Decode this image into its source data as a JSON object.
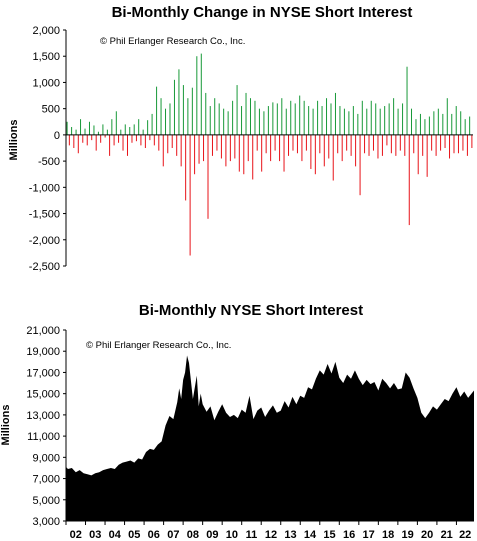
{
  "chart_data": [
    {
      "type": "bar",
      "title": "Bi-Monthly Change in NYSE Short Interest",
      "annotation": "© Phil Erlanger Research Co., Inc.",
      "ylabel": "Millions",
      "ylim": [
        -2500,
        2000
      ],
      "yticks": [
        "2,000",
        "1,500",
        "1,000",
        "500",
        "0",
        "-500",
        "-1,000",
        "-1,500",
        "-2,000",
        "-2,500"
      ],
      "ytick_values": [
        2000,
        1500,
        1000,
        500,
        0,
        -500,
        -1000,
        -1500,
        -2000,
        -2500
      ],
      "grid": false,
      "colors": {
        "positive": "#1a9a3a",
        "negative": "#e8151b"
      },
      "values": [
        250,
        -200,
        150,
        -250,
        100,
        -350,
        300,
        -150,
        120,
        -200,
        250,
        -100,
        180,
        -300,
        60,
        -150,
        200,
        -50,
        100,
        -400,
        300,
        -200,
        450,
        -150,
        100,
        -300,
        200,
        -400,
        150,
        -150,
        200,
        -120,
        300,
        -200,
        100,
        -250,
        280,
        -100,
        400,
        -200,
        920,
        -300,
        700,
        -600,
        500,
        -350,
        600,
        -250,
        1050,
        -400,
        1250,
        -600,
        950,
        -1250,
        700,
        -2300,
        900,
        -750,
        1500,
        -550,
        1550,
        -500,
        800,
        -1600,
        550,
        -400,
        700,
        -300,
        600,
        -450,
        500,
        -600,
        450,
        -500,
        650,
        -450,
        950,
        -700,
        550,
        -750,
        800,
        -500,
        700,
        -850,
        650,
        -300,
        500,
        -700,
        450,
        -350,
        550,
        -500,
        620,
        -300,
        600,
        -500,
        700,
        -700,
        500,
        -400,
        650,
        -300,
        600,
        -350,
        750,
        -500,
        650,
        -300,
        550,
        -650,
        500,
        -750,
        650,
        -350,
        550,
        -600,
        700,
        -450,
        600,
        -870,
        800,
        -350,
        550,
        -500,
        500,
        -300,
        450,
        -400,
        550,
        -600,
        400,
        -1150,
        650,
        -350,
        500,
        -400,
        650,
        -300,
        600,
        -450,
        500,
        -400,
        550,
        -200,
        600,
        -350,
        700,
        -400,
        500,
        -300,
        600,
        -400,
        1300,
        -1720,
        500,
        -350,
        300,
        -750,
        400,
        -400,
        300,
        -800,
        350,
        -300,
        450,
        -400,
        500,
        -300,
        400,
        -250,
        700,
        -450,
        400,
        -350,
        550,
        -350,
        450,
        -300,
        300,
        -400,
        350,
        -250
      ]
    },
    {
      "type": "area",
      "title": "Bi-Monthly NYSE Short Interest",
      "annotation": "© Phil Erlanger Research Co., Inc.",
      "ylabel": "Millions",
      "ylim": [
        3000,
        21000
      ],
      "yticks": [
        "21,000",
        "19,000",
        "17,000",
        "15,000",
        "13,000",
        "11,000",
        "9,000",
        "7,000",
        "5,000",
        "3,000"
      ],
      "ytick_values": [
        21000,
        19000,
        17000,
        15000,
        13000,
        11000,
        9000,
        7000,
        5000,
        3000
      ],
      "x_tick_labels": [
        "02",
        "03",
        "04",
        "05",
        "06",
        "07",
        "08",
        "09",
        "10",
        "11",
        "12",
        "13",
        "14",
        "15",
        "16",
        "17",
        "18",
        "19",
        "20",
        "21",
        "22"
      ],
      "xlim": [
        2002,
        2022.9
      ],
      "grid": false,
      "color": "#000000",
      "x": [
        2002.0,
        2002.1,
        2002.3,
        2002.5,
        2002.7,
        2002.9,
        2003.1,
        2003.3,
        2003.5,
        2003.7,
        2003.9,
        2004.1,
        2004.3,
        2004.5,
        2004.7,
        2004.9,
        2005.1,
        2005.3,
        2005.5,
        2005.7,
        2005.9,
        2006.1,
        2006.3,
        2006.5,
        2006.7,
        2006.9,
        2007.1,
        2007.3,
        2007.5,
        2007.7,
        2007.8,
        2007.9,
        2008.0,
        2008.1,
        2008.2,
        2008.3,
        2008.5,
        2008.7,
        2008.8,
        2008.9,
        2009.0,
        2009.2,
        2009.4,
        2009.6,
        2009.8,
        2010.0,
        2010.2,
        2010.4,
        2010.6,
        2010.8,
        2011.0,
        2011.2,
        2011.4,
        2011.6,
        2011.8,
        2012.0,
        2012.2,
        2012.4,
        2012.6,
        2012.8,
        2013.0,
        2013.2,
        2013.4,
        2013.6,
        2013.8,
        2014.0,
        2014.2,
        2014.4,
        2014.6,
        2014.8,
        2015.0,
        2015.2,
        2015.4,
        2015.6,
        2015.8,
        2016.0,
        2016.2,
        2016.4,
        2016.6,
        2016.8,
        2017.0,
        2017.2,
        2017.4,
        2017.6,
        2017.8,
        2018.0,
        2018.2,
        2018.4,
        2018.6,
        2018.8,
        2019.0,
        2019.2,
        2019.4,
        2019.6,
        2019.8,
        2020.0,
        2020.2,
        2020.4,
        2020.6,
        2020.8,
        2021.0,
        2021.2,
        2021.4,
        2021.6,
        2021.8,
        2022.0,
        2022.2,
        2022.4,
        2022.6,
        2022.9
      ],
      "values": [
        8100,
        7900,
        8000,
        7600,
        7800,
        7500,
        7400,
        7300,
        7500,
        7600,
        7800,
        7900,
        8000,
        7900,
        8300,
        8500,
        8600,
        8700,
        8500,
        8900,
        8800,
        9500,
        9800,
        9700,
        10200,
        10500,
        12000,
        12900,
        12600,
        14200,
        15500,
        14500,
        16300,
        17000,
        18600,
        17900,
        14500,
        16700,
        13800,
        15000,
        14000,
        13300,
        13800,
        12500,
        13300,
        14000,
        13200,
        12800,
        13000,
        12700,
        13500,
        13200,
        14800,
        12600,
        13400,
        13700,
        12800,
        13400,
        13900,
        13200,
        13400,
        14300,
        13700,
        14700,
        14000,
        14800,
        14600,
        15600,
        15400,
        16400,
        17200,
        16800,
        17800,
        16900,
        18000,
        16500,
        16000,
        16800,
        16400,
        17200,
        16400,
        15800,
        16300,
        15900,
        16100,
        15300,
        16400,
        16000,
        15500,
        16000,
        15400,
        15500,
        17000,
        16500,
        15500,
        14600,
        13200,
        12700,
        13200,
        13800,
        13500,
        14000,
        14500,
        14300,
        15000,
        15600,
        14700,
        15200,
        14600,
        15300
      ]
    }
  ]
}
